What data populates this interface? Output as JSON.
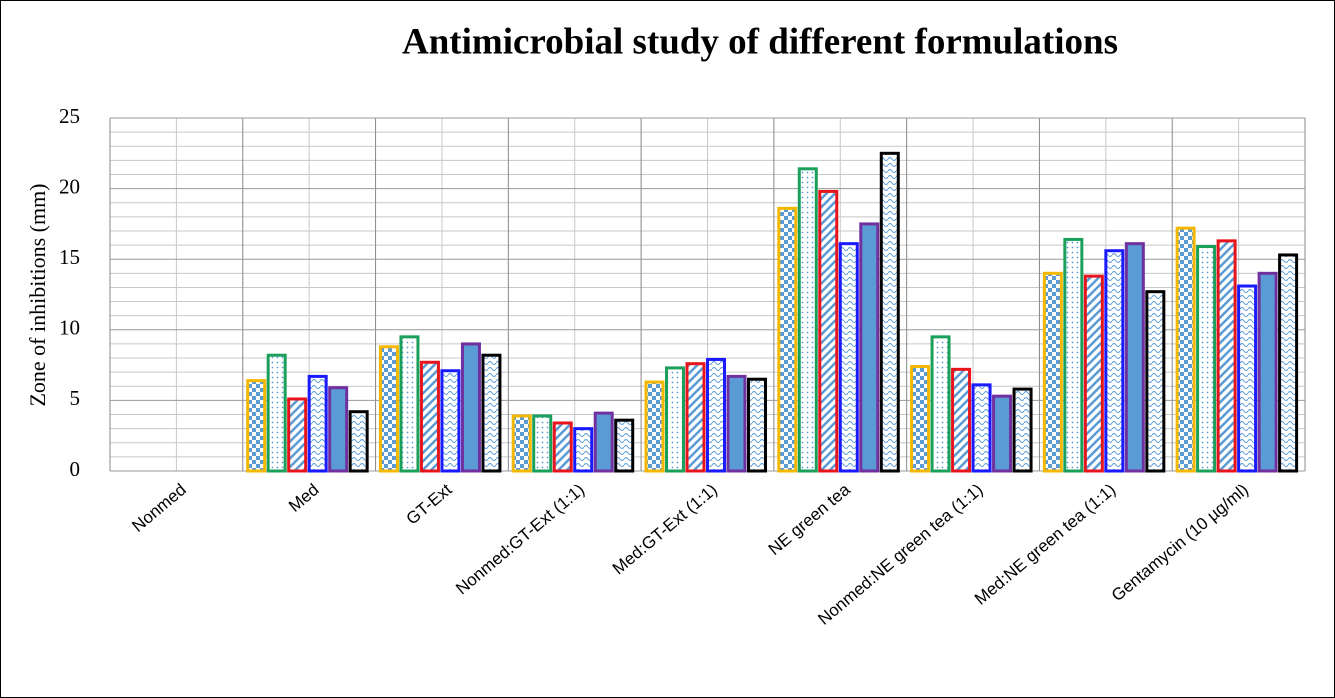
{
  "chart_data": {
    "type": "bar",
    "title": "Antimicrobial study of different formulations",
    "y_label": "Zone of inhibitions (mm)",
    "categories": [
      "Nonmed",
      "Med",
      "GT-Ext",
      "Nonmed:GT-Ext (1:1)",
      "Med:GT-Ext (1:1)",
      "NE green tea",
      "Nonmed:NE green tea (1:1)",
      "Med:NE green tea (1:1)",
      "Gentamycin (10 µg/ml)"
    ],
    "series": [
      {
        "color": "#f5b800",
        "pattern": "checker",
        "values": [
          0,
          6.4,
          8.8,
          3.9,
          6.3,
          18.6,
          7.4,
          14.0,
          17.2
        ]
      },
      {
        "color": "#1aa05a",
        "pattern": "dots",
        "values": [
          0,
          8.2,
          9.5,
          3.9,
          7.3,
          21.4,
          9.5,
          16.4,
          15.9
        ]
      },
      {
        "color": "#e8141c",
        "pattern": "stripes",
        "values": [
          0,
          5.1,
          7.7,
          3.4,
          7.6,
          19.8,
          7.2,
          13.8,
          16.3
        ]
      },
      {
        "color": "#1a1aff",
        "pattern": "waves",
        "values": [
          0,
          6.7,
          7.1,
          3.0,
          7.9,
          16.1,
          6.1,
          15.6,
          13.1
        ]
      },
      {
        "color": "#7030a0",
        "pattern": "solid",
        "values": [
          0,
          5.9,
          9.0,
          4.1,
          6.7,
          17.5,
          5.3,
          16.1,
          14.0
        ]
      },
      {
        "color": "#000000",
        "pattern": "waves",
        "values": [
          0,
          4.2,
          8.2,
          3.6,
          6.5,
          22.5,
          5.8,
          12.7,
          15.3
        ]
      }
    ],
    "ylim": [
      0,
      25
    ],
    "yticks": [
      0,
      5,
      10,
      15,
      20,
      25
    ],
    "grid": true
  }
}
